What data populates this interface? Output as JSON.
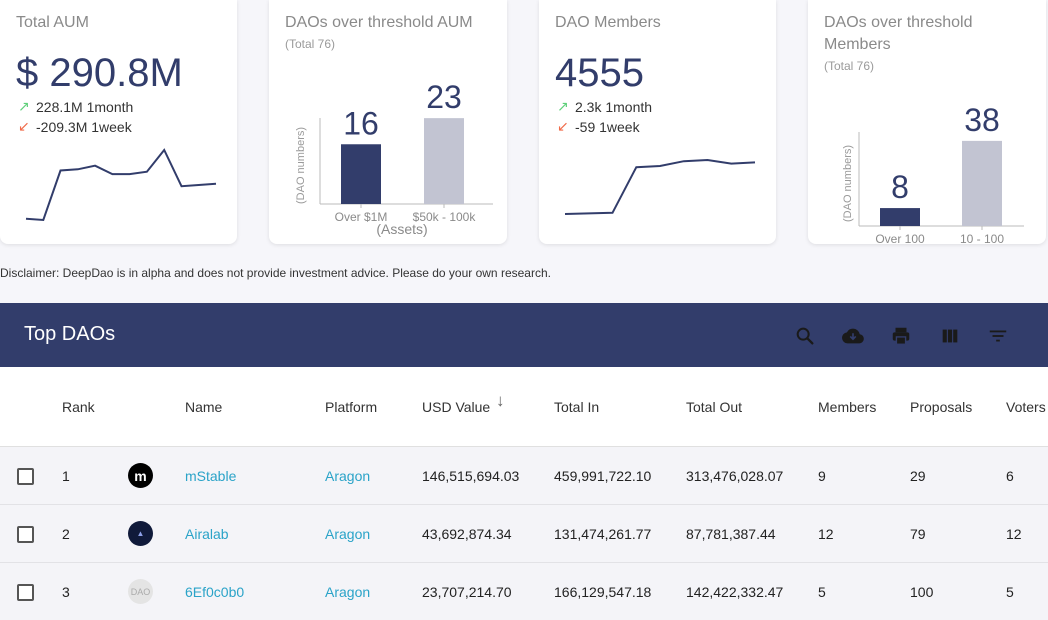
{
  "cards": {
    "total_aum": {
      "title": "Total AUM",
      "value": "$ 290.8M",
      "trend_up": "228.1M 1month",
      "trend_down": "-209.3M 1week",
      "sparkline": [
        8,
        7,
        48,
        49,
        52,
        45,
        45,
        47,
        65,
        35,
        36,
        37
      ]
    },
    "daos_threshold_aum": {
      "title": "DAOs over threshold AUM",
      "subtitle": "(Total 76)",
      "ylabel": "(DAO numbers)",
      "xlabel": "(Assets)"
    },
    "dao_members": {
      "title": "DAO Members",
      "value": "4555",
      "trend_up": "2.3k 1month",
      "trend_down": "-59 1week",
      "sparkline": [
        1,
        1.5,
        2,
        40,
        41,
        45,
        46,
        43,
        44
      ]
    },
    "daos_threshold_members": {
      "title_line1": "DAOs over threshold",
      "title_line2": "Members",
      "subtitle": "(Total 76)",
      "ylabel": "(DAO numbers)"
    }
  },
  "chart_data": [
    {
      "type": "bar",
      "categories": [
        "Over $1M",
        "$50k - 100k"
      ],
      "values": [
        16,
        23
      ],
      "title": "DAOs over threshold AUM",
      "subtitle": "(Total 76)",
      "xlabel": "(Assets)",
      "ylabel": "(DAO numbers)",
      "ylim": [
        0,
        30
      ],
      "colors": [
        "#323d6b",
        "#c2c4d2"
      ]
    },
    {
      "type": "bar",
      "categories": [
        "Over 100",
        "10 - 100"
      ],
      "values": [
        8,
        38
      ],
      "title": "DAOs over threshold Members",
      "subtitle": "(Total 76)",
      "ylabel": "(DAO numbers)",
      "ylim": [
        0,
        50
      ],
      "colors": [
        "#323d6b",
        "#c2c4d2"
      ]
    }
  ],
  "disclaimer": "Disclaimer: DeepDao is in alpha and does not provide investment advice. Please do your own research.",
  "table": {
    "title": "Top DAOs",
    "toolbar_icons": [
      "search-icon",
      "cloud-download-icon",
      "print-icon",
      "view-column-icon",
      "filter-list-icon"
    ],
    "columns": [
      "Rank",
      "Name",
      "Platform",
      "USD Value",
      "Total In",
      "Total Out",
      "Members",
      "Proposals",
      "Voters"
    ],
    "sort_indicator": "↓",
    "rows": [
      {
        "rank": "1",
        "logo": "m",
        "name": "mStable",
        "platform": "Aragon",
        "usd": "146,515,694.03",
        "in": "459,991,722.10",
        "out": "313,476,028.07",
        "members": "9",
        "proposals": "29",
        "voters": "6"
      },
      {
        "rank": "2",
        "logo": "▲",
        "name": "Airalab",
        "platform": "Aragon",
        "usd": "43,692,874.34",
        "in": "131,474,261.77",
        "out": "87,781,387.44",
        "members": "12",
        "proposals": "79",
        "voters": "12"
      },
      {
        "rank": "3",
        "logo": "DAO",
        "name": "6Ef0c0b0",
        "platform": "Aragon",
        "usd": "23,707,214.70",
        "in": "166,129,547.18",
        "out": "142,422,332.47",
        "members": "5",
        "proposals": "100",
        "voters": "5"
      }
    ]
  },
  "colors": {
    "navy": "#323d6b",
    "bar_light": "#c2c4d2",
    "link": "#2aa3c8",
    "up": "#5fd07a",
    "down": "#f06b4a"
  }
}
